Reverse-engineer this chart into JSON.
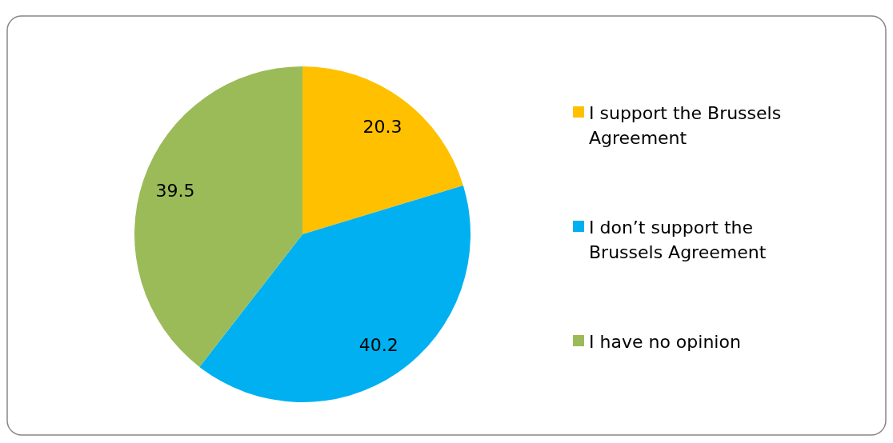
{
  "chart_data": {
    "type": "pie",
    "categories": [
      "I support the Brussels Agreement",
      "I don’t support the Brussels Agreement",
      "I have no opinion"
    ],
    "values": [
      20.3,
      40.2,
      39.5
    ],
    "colors": [
      "#ffc000",
      "#00b0f0",
      "#9bbb59"
    ],
    "data_labels": true,
    "legend": "right"
  }
}
